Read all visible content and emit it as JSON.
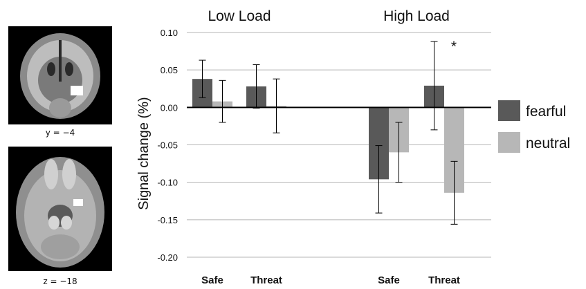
{
  "brain_images": [
    {
      "label": "y = −4",
      "view": "coronal"
    },
    {
      "label": "z = −18",
      "view": "axial"
    }
  ],
  "chart_data": {
    "type": "bar",
    "ylabel": "Signal change (%)",
    "ylim": [
      -0.2,
      0.1
    ],
    "yticks": [
      "0.10",
      "0.05",
      "0.00",
      "-0.05",
      "-0.10",
      "-0.15",
      "-0.20"
    ],
    "ytick_values": [
      0.1,
      0.05,
      0.0,
      -0.05,
      -0.1,
      -0.15,
      -0.2
    ],
    "grid": true,
    "legend_position": "right",
    "groups": [
      "Low Load",
      "High Load"
    ],
    "categories": [
      "Safe",
      "Threat",
      "Safe",
      "Threat"
    ],
    "series": [
      {
        "name": "fearful",
        "color": "#595959",
        "values": [
          0.038,
          0.028,
          -0.096,
          0.029
        ],
        "errors": [
          0.025,
          0.029,
          0.045,
          0.059
        ]
      },
      {
        "name": "neutral",
        "color": "#b7b7b7",
        "values": [
          0.008,
          0.002,
          -0.06,
          -0.114
        ],
        "errors": [
          0.028,
          0.036,
          0.04,
          0.042
        ]
      }
    ],
    "annotations": [
      {
        "text": "*",
        "category_index": 3
      }
    ]
  }
}
